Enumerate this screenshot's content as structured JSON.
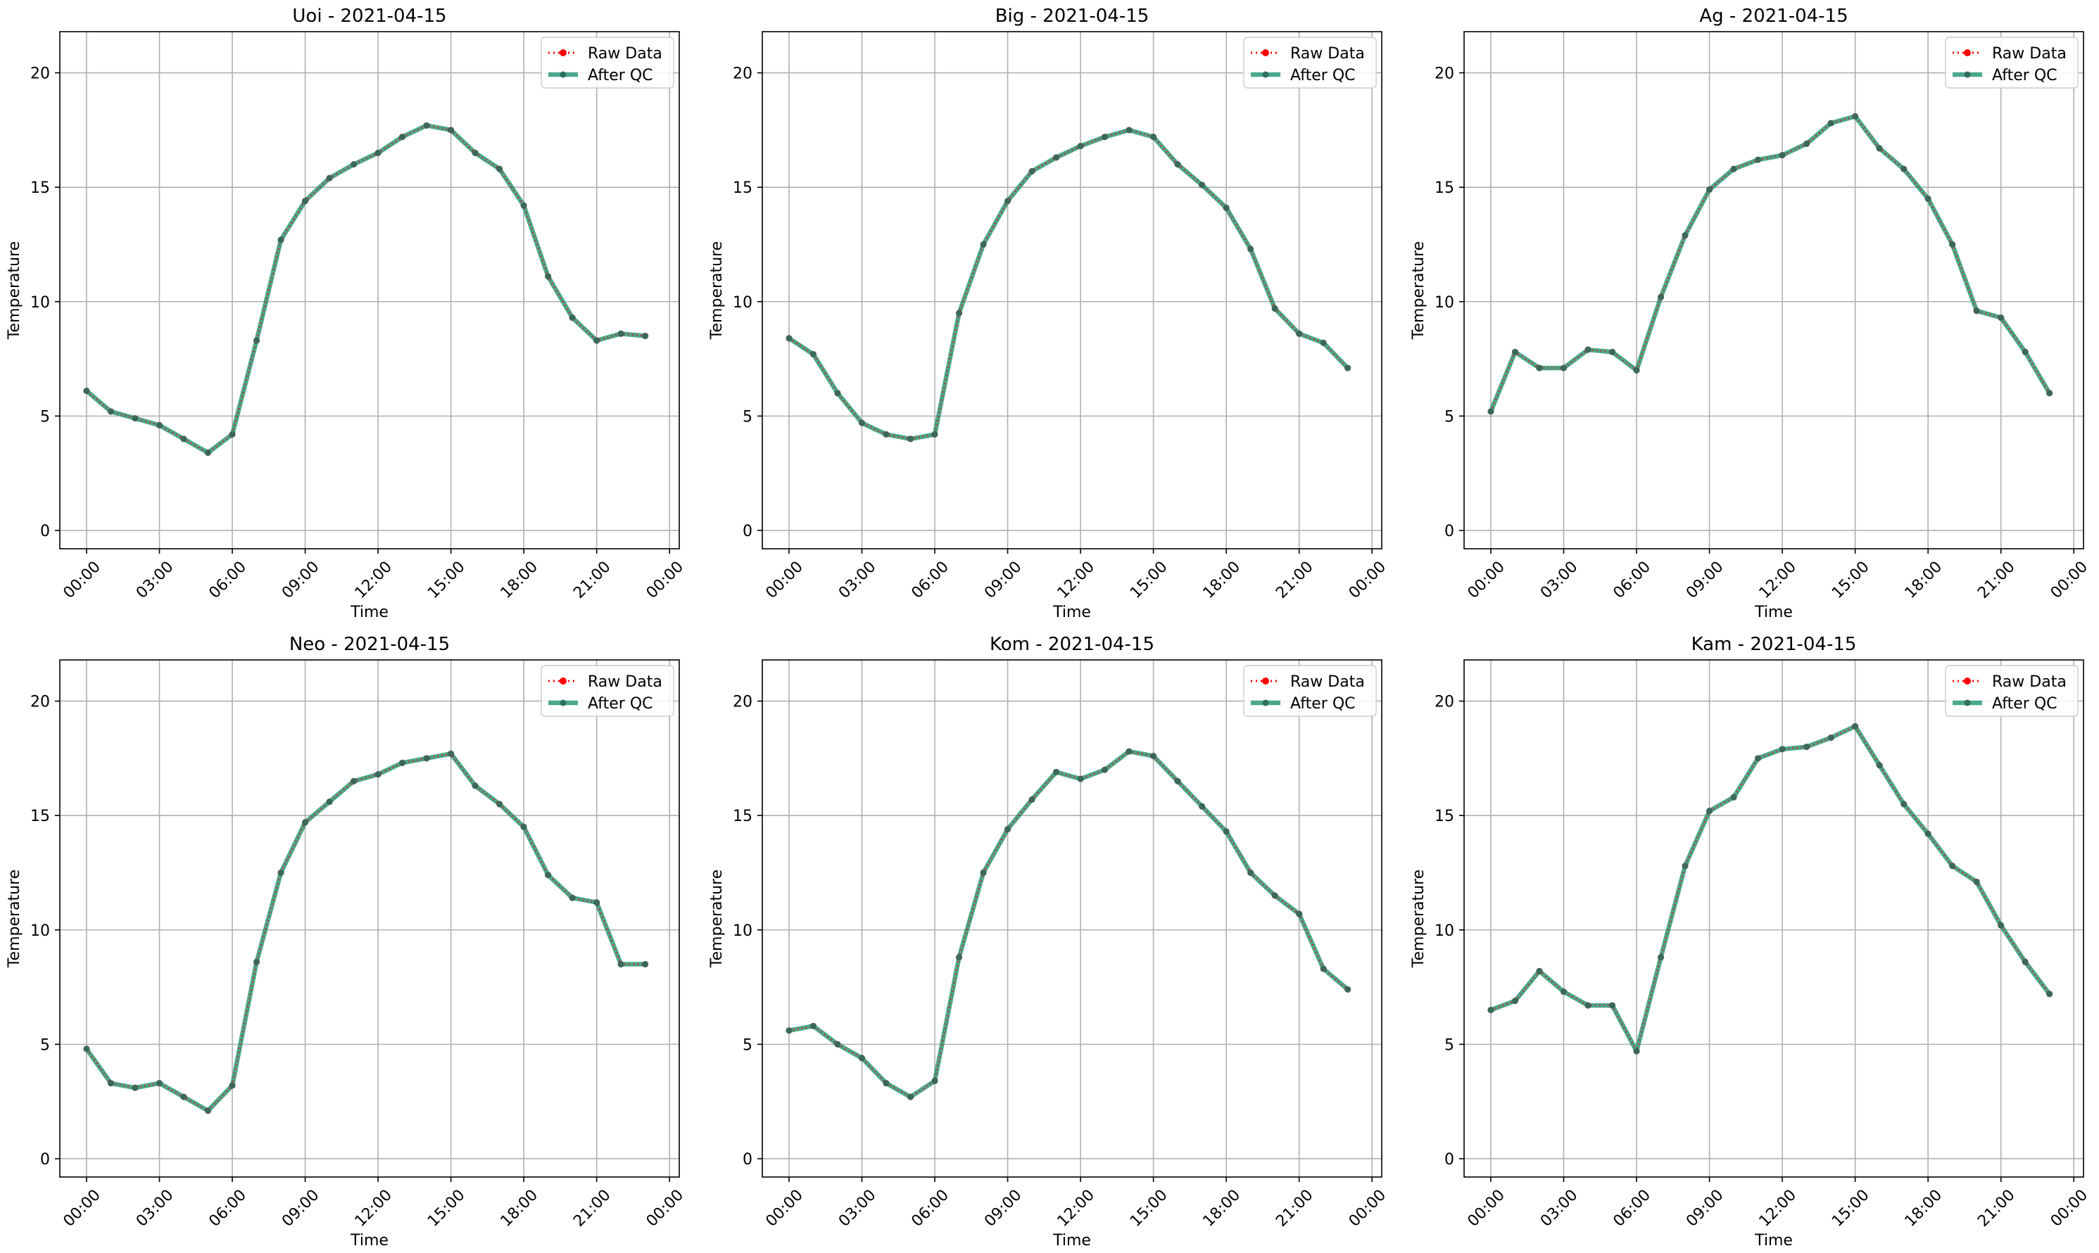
{
  "figure": {
    "legend_labels": [
      "Raw Data",
      "After QC"
    ],
    "colors": {
      "raw": "#ff0000",
      "qc": "#2a9a78",
      "qc_marker": "#2f6f60",
      "grid": "#b0b0b0",
      "axis": "#000000"
    }
  },
  "chart_data": [
    {
      "type": "line",
      "title": "Uoi - 2021-04-15",
      "xlabel": "Time",
      "ylabel": "Temperature",
      "x": [
        "00:00",
        "01:00",
        "02:00",
        "03:00",
        "04:00",
        "05:00",
        "06:00",
        "07:00",
        "08:00",
        "09:00",
        "10:00",
        "11:00",
        "12:00",
        "13:00",
        "14:00",
        "15:00",
        "16:00",
        "17:00",
        "18:00",
        "19:00",
        "20:00",
        "21:00",
        "22:00",
        "23:00"
      ],
      "xticks": [
        "00:00",
        "03:00",
        "06:00",
        "09:00",
        "12:00",
        "15:00",
        "18:00",
        "21:00",
        "00:00"
      ],
      "yticks": [
        0,
        5,
        10,
        15,
        20
      ],
      "ylim": [
        -0.8,
        21.8
      ],
      "grid": true,
      "legend": "top-right",
      "series": [
        {
          "name": "Raw Data",
          "values": [
            6.1,
            5.2,
            4.9,
            4.6,
            4.0,
            3.4,
            4.2,
            8.3,
            12.7,
            14.4,
            15.4,
            16.0,
            16.5,
            17.2,
            17.7,
            17.5,
            16.5,
            15.8,
            14.2,
            11.1,
            9.3,
            8.3,
            8.6,
            8.5
          ]
        },
        {
          "name": "After QC",
          "values": [
            6.1,
            5.2,
            4.9,
            4.6,
            4.0,
            3.4,
            4.2,
            8.3,
            12.7,
            14.4,
            15.4,
            16.0,
            16.5,
            17.2,
            17.7,
            17.5,
            16.5,
            15.8,
            14.2,
            11.1,
            9.3,
            8.3,
            8.6,
            8.5
          ]
        }
      ]
    },
    {
      "type": "line",
      "title": "Big - 2021-04-15",
      "xlabel": "Time",
      "ylabel": "Temperature",
      "x": [
        "00:00",
        "01:00",
        "02:00",
        "03:00",
        "04:00",
        "05:00",
        "06:00",
        "07:00",
        "08:00",
        "09:00",
        "10:00",
        "11:00",
        "12:00",
        "13:00",
        "14:00",
        "15:00",
        "16:00",
        "17:00",
        "18:00",
        "19:00",
        "20:00",
        "21:00",
        "22:00",
        "23:00"
      ],
      "xticks": [
        "00:00",
        "03:00",
        "06:00",
        "09:00",
        "12:00",
        "15:00",
        "18:00",
        "21:00",
        "00:00"
      ],
      "yticks": [
        0,
        5,
        10,
        15,
        20
      ],
      "ylim": [
        -0.8,
        21.8
      ],
      "grid": true,
      "legend": "top-right",
      "series": [
        {
          "name": "Raw Data",
          "values": [
            8.4,
            7.7,
            6.0,
            4.7,
            4.2,
            4.0,
            4.2,
            9.5,
            12.5,
            14.4,
            15.7,
            16.3,
            16.8,
            17.2,
            17.5,
            17.2,
            16.0,
            15.1,
            14.1,
            12.3,
            9.7,
            8.6,
            8.2,
            7.1
          ]
        },
        {
          "name": "After QC",
          "values": [
            8.4,
            7.7,
            6.0,
            4.7,
            4.2,
            4.0,
            4.2,
            9.5,
            12.5,
            14.4,
            15.7,
            16.3,
            16.8,
            17.2,
            17.5,
            17.2,
            16.0,
            15.1,
            14.1,
            12.3,
            9.7,
            8.6,
            8.2,
            7.1
          ]
        }
      ]
    },
    {
      "type": "line",
      "title": "Ag - 2021-04-15",
      "xlabel": "Time",
      "ylabel": "Temperature",
      "x": [
        "00:00",
        "01:00",
        "02:00",
        "03:00",
        "04:00",
        "05:00",
        "06:00",
        "07:00",
        "08:00",
        "09:00",
        "10:00",
        "11:00",
        "12:00",
        "13:00",
        "14:00",
        "15:00",
        "16:00",
        "17:00",
        "18:00",
        "19:00",
        "20:00",
        "21:00",
        "22:00",
        "23:00"
      ],
      "xticks": [
        "00:00",
        "03:00",
        "06:00",
        "09:00",
        "12:00",
        "15:00",
        "18:00",
        "21:00",
        "00:00"
      ],
      "yticks": [
        0,
        5,
        10,
        15,
        20
      ],
      "ylim": [
        -0.8,
        21.8
      ],
      "grid": true,
      "legend": "top-right",
      "series": [
        {
          "name": "Raw Data",
          "values": [
            5.2,
            7.8,
            7.1,
            7.1,
            7.9,
            7.8,
            7.0,
            10.2,
            12.9,
            14.9,
            15.8,
            16.2,
            16.4,
            16.9,
            17.8,
            18.1,
            16.7,
            15.8,
            14.5,
            12.5,
            9.6,
            9.3,
            7.8,
            6.0
          ]
        },
        {
          "name": "After QC",
          "values": [
            5.2,
            7.8,
            7.1,
            7.1,
            7.9,
            7.8,
            7.0,
            10.2,
            12.9,
            14.9,
            15.8,
            16.2,
            16.4,
            16.9,
            17.8,
            18.1,
            16.7,
            15.8,
            14.5,
            12.5,
            9.6,
            9.3,
            7.8,
            6.0
          ]
        }
      ]
    },
    {
      "type": "line",
      "title": "Neo - 2021-04-15",
      "xlabel": "Time",
      "ylabel": "Temperature",
      "x": [
        "00:00",
        "01:00",
        "02:00",
        "03:00",
        "04:00",
        "05:00",
        "06:00",
        "07:00",
        "08:00",
        "09:00",
        "10:00",
        "11:00",
        "12:00",
        "13:00",
        "14:00",
        "15:00",
        "16:00",
        "17:00",
        "18:00",
        "19:00",
        "20:00",
        "21:00",
        "22:00",
        "23:00"
      ],
      "xticks": [
        "00:00",
        "03:00",
        "06:00",
        "09:00",
        "12:00",
        "15:00",
        "18:00",
        "21:00",
        "00:00"
      ],
      "yticks": [
        0,
        5,
        10,
        15,
        20
      ],
      "ylim": [
        -0.8,
        21.8
      ],
      "grid": true,
      "legend": "top-right",
      "series": [
        {
          "name": "Raw Data",
          "values": [
            4.8,
            3.3,
            3.1,
            3.3,
            2.7,
            2.1,
            3.2,
            8.6,
            12.5,
            14.7,
            15.6,
            16.5,
            16.8,
            17.3,
            17.5,
            17.7,
            16.3,
            15.5,
            14.5,
            12.4,
            11.4,
            11.2,
            8.5,
            8.5
          ]
        },
        {
          "name": "After QC",
          "values": [
            4.8,
            3.3,
            3.1,
            3.3,
            2.7,
            2.1,
            3.2,
            8.6,
            12.5,
            14.7,
            15.6,
            16.5,
            16.8,
            17.3,
            17.5,
            17.7,
            16.3,
            15.5,
            14.5,
            12.4,
            11.4,
            11.2,
            8.5,
            8.5
          ]
        }
      ]
    },
    {
      "type": "line",
      "title": "Kom - 2021-04-15",
      "xlabel": "Time",
      "ylabel": "Temperature",
      "x": [
        "00:00",
        "01:00",
        "02:00",
        "03:00",
        "04:00",
        "05:00",
        "06:00",
        "07:00",
        "08:00",
        "09:00",
        "10:00",
        "11:00",
        "12:00",
        "13:00",
        "14:00",
        "15:00",
        "16:00",
        "17:00",
        "18:00",
        "19:00",
        "20:00",
        "21:00",
        "22:00",
        "23:00"
      ],
      "xticks": [
        "00:00",
        "03:00",
        "06:00",
        "09:00",
        "12:00",
        "15:00",
        "18:00",
        "21:00",
        "00:00"
      ],
      "yticks": [
        0,
        5,
        10,
        15,
        20
      ],
      "ylim": [
        -0.8,
        21.8
      ],
      "grid": true,
      "legend": "top-right",
      "series": [
        {
          "name": "Raw Data",
          "values": [
            5.6,
            5.8,
            5.0,
            4.4,
            3.3,
            2.7,
            3.4,
            8.8,
            12.5,
            14.4,
            15.7,
            16.9,
            16.6,
            17.0,
            17.8,
            17.6,
            16.5,
            15.4,
            14.3,
            12.5,
            11.5,
            10.7,
            8.3,
            7.4
          ]
        },
        {
          "name": "After QC",
          "values": [
            5.6,
            5.8,
            5.0,
            4.4,
            3.3,
            2.7,
            3.4,
            8.8,
            12.5,
            14.4,
            15.7,
            16.9,
            16.6,
            17.0,
            17.8,
            17.6,
            16.5,
            15.4,
            14.3,
            12.5,
            11.5,
            10.7,
            8.3,
            7.4
          ]
        }
      ]
    },
    {
      "type": "line",
      "title": "Kam - 2021-04-15",
      "xlabel": "Time",
      "ylabel": "Temperature",
      "x": [
        "00:00",
        "01:00",
        "02:00",
        "03:00",
        "04:00",
        "05:00",
        "06:00",
        "07:00",
        "08:00",
        "09:00",
        "10:00",
        "11:00",
        "12:00",
        "13:00",
        "14:00",
        "15:00",
        "16:00",
        "17:00",
        "18:00",
        "19:00",
        "20:00",
        "21:00",
        "22:00",
        "23:00"
      ],
      "xticks": [
        "00:00",
        "03:00",
        "06:00",
        "09:00",
        "12:00",
        "15:00",
        "18:00",
        "21:00",
        "00:00"
      ],
      "yticks": [
        0,
        5,
        10,
        15,
        20
      ],
      "ylim": [
        -0.8,
        21.8
      ],
      "grid": true,
      "legend": "top-right",
      "series": [
        {
          "name": "Raw Data",
          "values": [
            6.5,
            6.9,
            8.2,
            7.3,
            6.7,
            6.7,
            4.7,
            8.8,
            12.8,
            15.2,
            15.8,
            17.5,
            17.9,
            18.0,
            18.4,
            18.9,
            17.2,
            15.5,
            14.2,
            12.8,
            12.1,
            10.2,
            8.6,
            7.2
          ]
        },
        {
          "name": "After QC",
          "values": [
            6.5,
            6.9,
            8.2,
            7.3,
            6.7,
            6.7,
            4.7,
            8.8,
            12.8,
            15.2,
            15.8,
            17.5,
            17.9,
            18.0,
            18.4,
            18.9,
            17.2,
            15.5,
            14.2,
            12.8,
            12.1,
            10.2,
            8.6,
            7.2
          ]
        }
      ]
    }
  ]
}
